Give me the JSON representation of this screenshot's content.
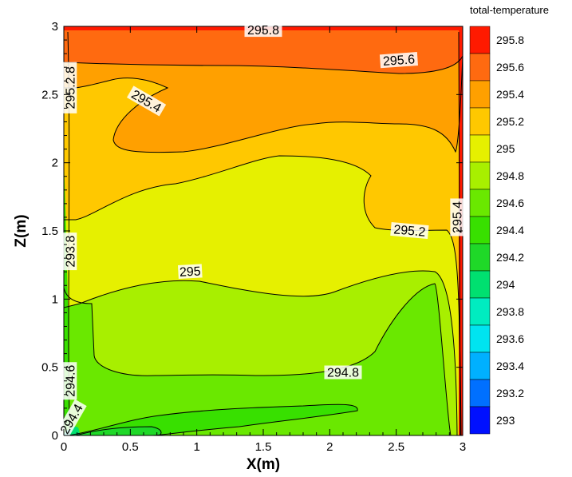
{
  "chart_data": {
    "type": "contour",
    "title": "",
    "xlabel": "X(m)",
    "ylabel": "Z(m)",
    "xlim": [
      0,
      3
    ],
    "ylim": [
      0,
      3
    ],
    "x_ticks": [
      "0",
      "0.5",
      "1",
      "1.5",
      "2",
      "2.5",
      "3"
    ],
    "y_ticks": [
      "0",
      "0.5",
      "1",
      "1.5",
      "2",
      "2.5",
      "3"
    ],
    "legend_title": "total-temperature",
    "legend_placement": "right",
    "levels": [
      {
        "label": "295.8",
        "color": "#ff1a00"
      },
      {
        "label": "295.6",
        "color": "#ff6a10"
      },
      {
        "label": "295.4",
        "color": "#ffa000"
      },
      {
        "label": "295.2",
        "color": "#ffc800"
      },
      {
        "label": "295",
        "color": "#e6f000"
      },
      {
        "label": "294.8",
        "color": "#a8ef00"
      },
      {
        "label": "294.6",
        "color": "#6ae800"
      },
      {
        "label": "294.4",
        "color": "#38e000"
      },
      {
        "label": "294.2",
        "color": "#1fd828"
      },
      {
        "label": "294",
        "color": "#00e070"
      },
      {
        "label": "293.8",
        "color": "#00ecc0"
      },
      {
        "label": "293.6",
        "color": "#00e4f0"
      },
      {
        "label": "293.4",
        "color": "#00b0ff"
      },
      {
        "label": "293.2",
        "color": "#0070ff"
      },
      {
        "label": "293",
        "color": "#0010ff"
      }
    ],
    "contour_labels": [
      {
        "text": "295.8",
        "x": 1.5,
        "z": 2.97,
        "angle": 0
      },
      {
        "text": "295.6",
        "x": 2.52,
        "z": 2.75,
        "angle": 4
      },
      {
        "text": "295.4",
        "x": 0.62,
        "z": 2.45,
        "angle": -30
      },
      {
        "text": "295.2",
        "x": 2.6,
        "z": 1.5,
        "angle": -5
      },
      {
        "text": "295",
        "x": 0.95,
        "z": 1.2,
        "angle": 3
      },
      {
        "text": "294.8",
        "x": 2.1,
        "z": 0.46,
        "angle": 0
      },
      {
        "text": "295.4",
        "x": 2.96,
        "z": 1.6,
        "angle": 90
      },
      {
        "text": "295.2.8",
        "x": 0.05,
        "z": 2.55,
        "angle": 90
      },
      {
        "text": "293.8",
        "x": 0.05,
        "z": 1.35,
        "angle": 90
      },
      {
        "text": "294.6",
        "x": 0.05,
        "z": 0.4,
        "angle": 90
      },
      {
        "text": "294.4",
        "x": 0.06,
        "z": 0.12,
        "angle": 60
      }
    ]
  }
}
